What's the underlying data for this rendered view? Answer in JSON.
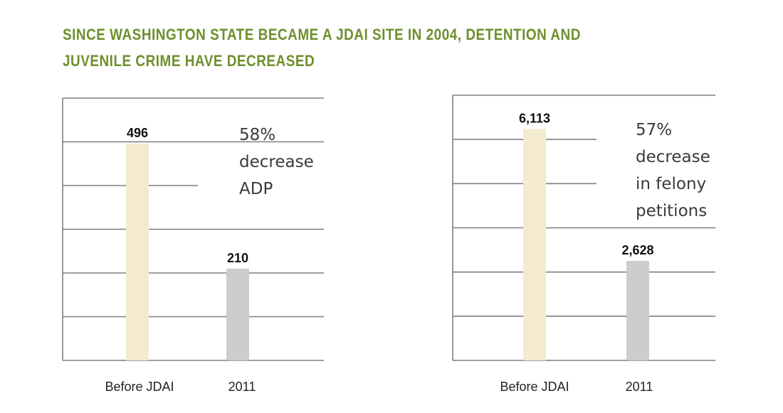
{
  "title": "SINCE WASHINGTON STATE BECAME A JDAI SITE IN 2004, DETENTION AND JUVENILE CRIME HAVE DECREASED",
  "colors": {
    "title": "#6e8f2c",
    "bar_before": "#f3ead0",
    "bar_2011": "#cccdcf",
    "grid": "#7f7f7f"
  },
  "chart_data": [
    {
      "type": "bar",
      "categories": [
        "Before JDAI",
        "2011"
      ],
      "values": [
        496,
        210
      ],
      "value_labels": [
        "496",
        "210"
      ],
      "annotation": [
        "58%",
        "decrease",
        "ADP"
      ],
      "ylim": [
        0,
        600
      ],
      "grid": true
    },
    {
      "type": "bar",
      "categories": [
        "Before JDAI",
        "2011"
      ],
      "values": [
        6113,
        2628
      ],
      "value_labels": [
        "6,113",
        "2,628"
      ],
      "annotation": [
        "57%",
        "decrease",
        "in felony",
        "petitions"
      ],
      "ylim": [
        0,
        7000
      ],
      "grid": true
    }
  ]
}
